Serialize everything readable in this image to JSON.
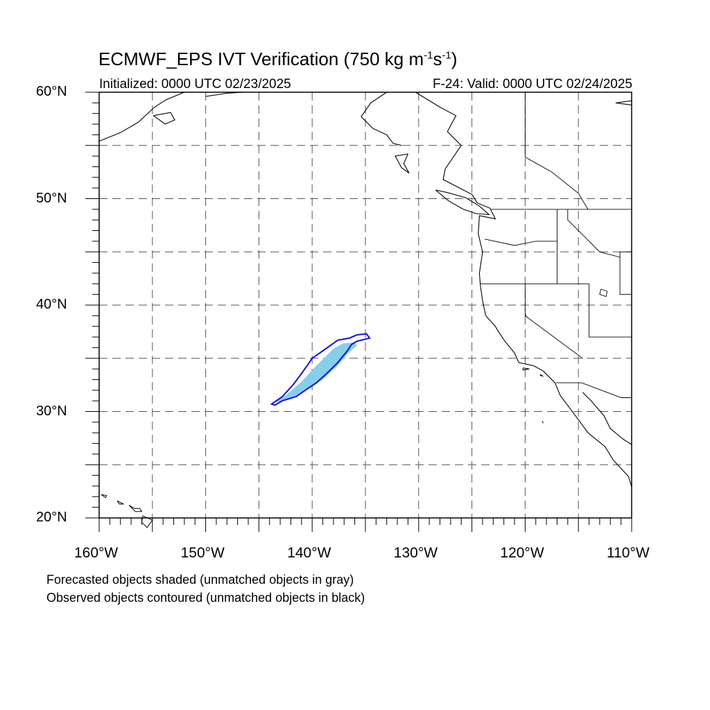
{
  "title": {
    "prefix": "ECMWF_EPS IVT Verification (750 kg m",
    "exp1": "-1",
    "middle": "s",
    "exp2": "-1",
    "suffix": ")"
  },
  "initialized": "Initialized: 0000 UTC 02/23/2025",
  "valid": "F-24: Valid: 0000 UTC 02/24/2025",
  "notes": {
    "forecast": "Forecasted objects shaded (unmatched objects in gray)",
    "observed": "Observed objects contoured (unmatched objects in black)"
  },
  "map": {
    "lon_range": [
      -160,
      -110
    ],
    "lat_range": [
      20,
      60
    ],
    "grid": "dashed, every 5 degrees",
    "lat_labels": [
      {
        "lat": 60,
        "text": "60°N"
      },
      {
        "lat": 50,
        "text": "50°N"
      },
      {
        "lat": 40,
        "text": "40°N"
      },
      {
        "lat": 30,
        "text": "30°N"
      },
      {
        "lat": 20,
        "text": "20°N"
      }
    ],
    "lon_labels": [
      {
        "lon": -160,
        "text": "160°W"
      },
      {
        "lon": -150,
        "text": "150°W"
      },
      {
        "lon": -140,
        "text": "140°W"
      },
      {
        "lon": -130,
        "text": "130°W"
      },
      {
        "lon": -120,
        "text": "120°W"
      },
      {
        "lon": -110,
        "text": "110°W"
      }
    ],
    "colors": {
      "forecast_fill": "#87ceeb",
      "observed_contour": "#1010e0",
      "coastline": "#000000",
      "grid": "#555555"
    },
    "objects": {
      "forecast_object": [
        [
          -143.7,
          30.8
        ],
        [
          -142.5,
          31.5
        ],
        [
          -141.0,
          32.8
        ],
        [
          -139.8,
          34.1
        ],
        [
          -138.9,
          35.0
        ],
        [
          -138.0,
          35.9
        ],
        [
          -137.1,
          36.4
        ],
        [
          -136.0,
          36.5
        ],
        [
          -135.8,
          36.2
        ],
        [
          -136.6,
          35.5
        ],
        [
          -137.6,
          34.3
        ],
        [
          -139.0,
          33.0
        ],
        [
          -140.5,
          32.0
        ],
        [
          -142.3,
          31.1
        ],
        [
          -143.7,
          30.8
        ]
      ],
      "observed_object": [
        [
          -143.8,
          30.7
        ],
        [
          -142.8,
          31.4
        ],
        [
          -141.8,
          32.5
        ],
        [
          -140.9,
          33.7
        ],
        [
          -140.0,
          35.0
        ],
        [
          -139.0,
          35.7
        ],
        [
          -137.6,
          36.7
        ],
        [
          -136.5,
          36.9
        ],
        [
          -135.8,
          37.2
        ],
        [
          -134.9,
          37.3
        ],
        [
          -134.6,
          36.9
        ],
        [
          -135.8,
          36.6
        ],
        [
          -136.3,
          36.3
        ],
        [
          -136.7,
          35.7
        ],
        [
          -137.6,
          34.6
        ],
        [
          -138.6,
          33.6
        ],
        [
          -139.6,
          32.7
        ],
        [
          -140.5,
          32.1
        ],
        [
          -141.5,
          31.4
        ],
        [
          -142.8,
          31.0
        ],
        [
          -143.5,
          30.6
        ],
        [
          -143.8,
          30.7
        ]
      ]
    },
    "coastlines": [
      [
        [
          -130.3,
          60
        ],
        [
          -128,
          58.6
        ],
        [
          -126.5,
          57.8
        ],
        [
          -127.3,
          56.3
        ],
        [
          -126,
          55
        ],
        [
          -127.5,
          52.8
        ],
        [
          -127.7,
          51.8
        ],
        [
          -125,
          50.4
        ],
        [
          -124.5,
          49.6
        ],
        [
          -123.3,
          49.1
        ],
        [
          -122.8,
          48.1
        ],
        [
          -124.3,
          48.4
        ],
        [
          -124.4,
          46.7
        ],
        [
          -124.0,
          45.0
        ],
        [
          -124.3,
          43.0
        ],
        [
          -124.2,
          41.8
        ],
        [
          -124.0,
          40.4
        ],
        [
          -123.7,
          39.0
        ],
        [
          -122.8,
          38.0
        ],
        [
          -122.5,
          37.5
        ],
        [
          -121.9,
          36.6
        ],
        [
          -121.0,
          35.5
        ],
        [
          -120.6,
          34.6
        ],
        [
          -119.2,
          34.3
        ],
        [
          -118.3,
          33.8
        ],
        [
          -117.2,
          32.7
        ],
        [
          -116.7,
          31.5
        ],
        [
          -115.8,
          30.3
        ],
        [
          -114.9,
          29.1
        ],
        [
          -114.1,
          28.0
        ],
        [
          -112.5,
          26.7
        ],
        [
          -111.7,
          25.4
        ],
        [
          -110.3,
          23.9
        ],
        [
          -110,
          22.9
        ]
      ],
      [
        [
          -114.6,
          31.8
        ],
        [
          -113.8,
          31.0
        ],
        [
          -112.6,
          29.6
        ],
        [
          -112.0,
          28.4
        ],
        [
          -110.8,
          27.4
        ],
        [
          -110,
          26.9
        ]
      ],
      [
        [
          -128.4,
          50.8
        ],
        [
          -127.4,
          50.6
        ],
        [
          -125.6,
          50.1
        ],
        [
          -124.3,
          49.3
        ],
        [
          -123.4,
          48.5
        ],
        [
          -124.6,
          48.6
        ],
        [
          -125.8,
          49.0
        ],
        [
          -127.2,
          49.8
        ],
        [
          -128.4,
          50.8
        ]
      ],
      [
        [
          -131.0,
          54.2
        ],
        [
          -132.2,
          54.0
        ],
        [
          -131.6,
          52.9
        ],
        [
          -130.9,
          52.4
        ],
        [
          -131.4,
          53.3
        ],
        [
          -131.0,
          54.2
        ]
      ],
      [
        [
          -133.0,
          60
        ],
        [
          -134.5,
          59.0
        ],
        [
          -135.4,
          57.7
        ],
        [
          -134.3,
          56.6
        ],
        [
          -133.0,
          56.0
        ],
        [
          -132.4,
          55.2
        ],
        [
          -131.6,
          55.0
        ]
      ],
      [
        [
          -160,
          55.4
        ],
        [
          -158.0,
          56.2
        ],
        [
          -156.3,
          57.2
        ],
        [
          -154.8,
          58.6
        ],
        [
          -153.7,
          59.3
        ],
        [
          -152.0,
          60
        ]
      ],
      [
        [
          -154.9,
          57.8
        ],
        [
          -153.8,
          57.0
        ],
        [
          -152.9,
          57.4
        ],
        [
          -153.3,
          58.1
        ],
        [
          -154.9,
          57.8
        ]
      ],
      [
        [
          -146.5,
          60
        ],
        [
          -148.0,
          59.9
        ],
        [
          -150.0,
          59.6
        ]
      ],
      [
        [
          -110,
          59.2
        ],
        [
          -111.5,
          59.0
        ],
        [
          -110,
          58.8
        ]
      ]
    ],
    "borders": [
      [
        [
          -123.2,
          49.0
        ],
        [
          -110,
          49.0
        ]
      ],
      [
        [
          -124.2,
          42.0
        ],
        [
          -114.0,
          42.0
        ]
      ],
      [
        [
          -123.8,
          46.2
        ],
        [
          -121.0,
          45.6
        ],
        [
          -119.0,
          46.0
        ],
        [
          -117.0,
          46.0
        ]
      ],
      [
        [
          -117.0,
          49.0
        ],
        [
          -117.0,
          42.0
        ]
      ],
      [
        [
          -120.0,
          42.0
        ],
        [
          -120.0,
          39.0
        ],
        [
          -114.6,
          35.0
        ]
      ],
      [
        [
          -114.0,
          42.0
        ],
        [
          -114.0,
          37.0
        ],
        [
          -110,
          37.0
        ]
      ],
      [
        [
          -111.1,
          45.0
        ],
        [
          -110,
          45.0
        ]
      ],
      [
        [
          -111.1,
          45.0
        ],
        [
          -111.1,
          41.0
        ],
        [
          -110,
          41.0
        ]
      ],
      [
        [
          -116.0,
          49.0
        ],
        [
          -116.0,
          48.0
        ],
        [
          -114.5,
          46.5
        ],
        [
          -113.0,
          45.0
        ],
        [
          -111.1,
          44.5
        ]
      ],
      [
        [
          -117.1,
          32.7
        ],
        [
          -114.7,
          32.7
        ],
        [
          -111.0,
          31.3
        ],
        [
          -110,
          31.3
        ]
      ],
      [
        [
          -120.0,
          60
        ],
        [
          -120.0,
          53.9
        ],
        [
          -117.5,
          52.5
        ],
        [
          -115.0,
          50.5
        ],
        [
          -114.1,
          49.0
        ]
      ]
    ],
    "lakes": [
      [
        [
          -112.9,
          41.5
        ],
        [
          -112.3,
          41.3
        ],
        [
          -112.4,
          40.8
        ],
        [
          -113.0,
          41.0
        ],
        [
          -112.9,
          41.5
        ]
      ],
      [
        [
          -120.0,
          39.2
        ],
        [
          -119.9,
          38.9
        ]
      ]
    ],
    "islands": [
      [
        [
          -155.9,
          20.2
        ],
        [
          -155.0,
          19.8
        ],
        [
          -155.5,
          19.1
        ],
        [
          -156.0,
          19.6
        ],
        [
          -155.9,
          20.2
        ]
      ],
      [
        [
          -157.2,
          21.2
        ],
        [
          -156.7,
          20.9
        ],
        [
          -156.2,
          20.9
        ],
        [
          -156.0,
          20.6
        ],
        [
          -156.6,
          20.6
        ],
        [
          -157.2,
          21.2
        ]
      ],
      [
        [
          -158.3,
          21.6
        ],
        [
          -157.7,
          21.3
        ],
        [
          -158.1,
          21.3
        ],
        [
          -158.3,
          21.6
        ]
      ],
      [
        [
          -159.8,
          22.2
        ],
        [
          -159.3,
          22.1
        ],
        [
          -159.4,
          21.9
        ],
        [
          -159.8,
          22.2
        ]
      ],
      [
        [
          -118.6,
          33.5
        ],
        [
          -118.3,
          33.3
        ],
        [
          -118.6,
          33.4
        ]
      ],
      [
        [
          -120.2,
          34.1
        ],
        [
          -119.6,
          34.0
        ],
        [
          -120.2,
          33.9
        ],
        [
          -120.2,
          34.1
        ]
      ],
      [
        [
          -118.4,
          29.1
        ],
        [
          -118.3,
          28.9
        ]
      ]
    ]
  }
}
